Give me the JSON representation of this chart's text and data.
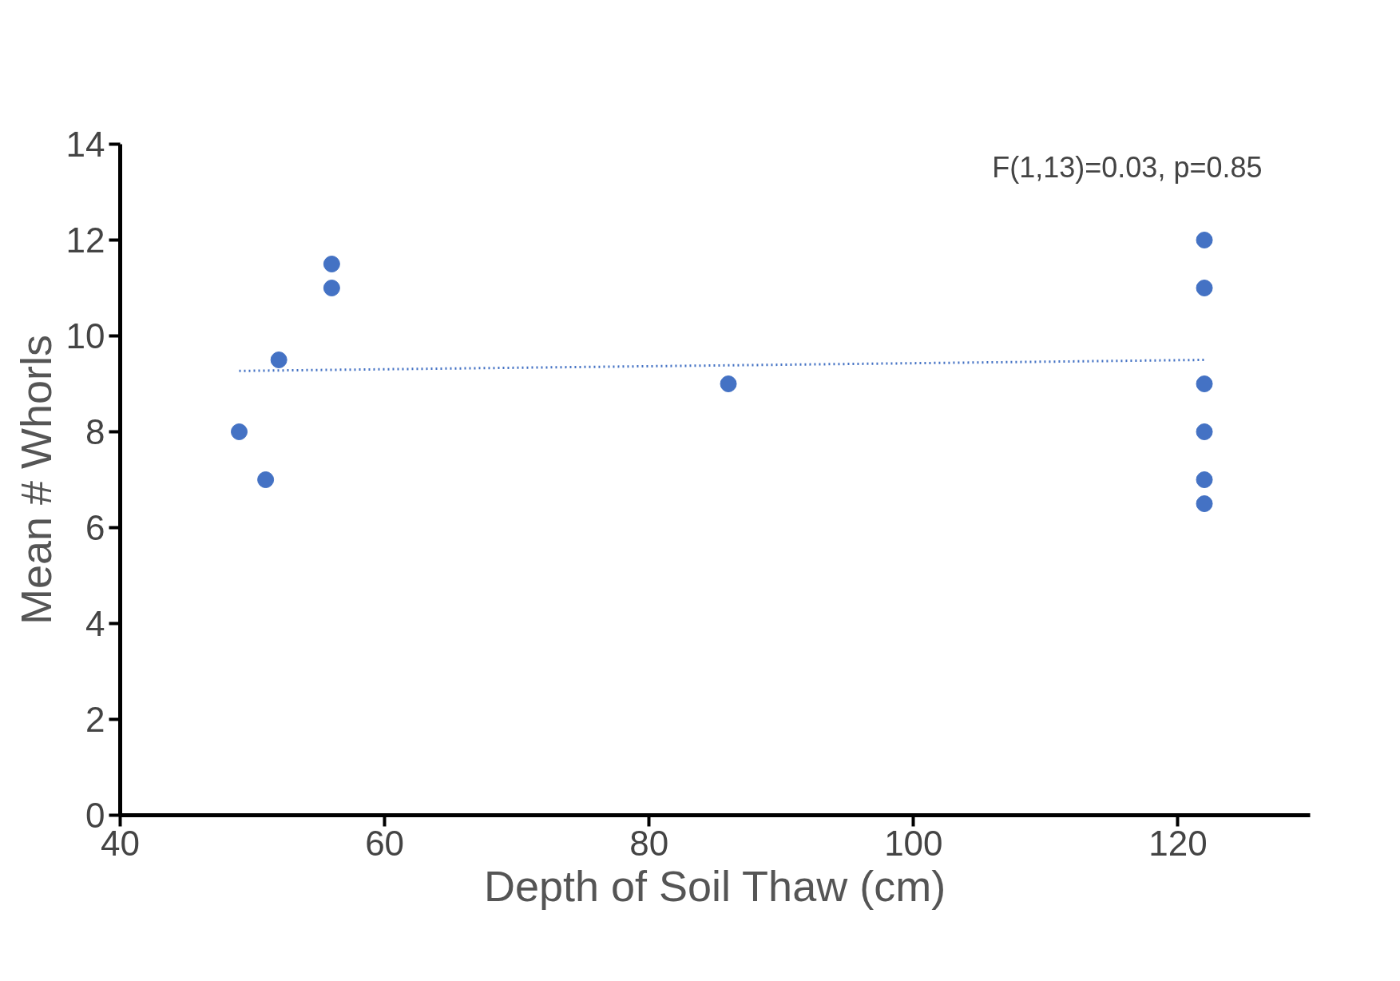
{
  "chart_data": {
    "type": "scatter",
    "xlabel": "Depth of Soil Thaw (cm)",
    "ylabel": "Mean # Whorls",
    "annotations": [
      "F(1,13)=0.03, p=0.85"
    ],
    "xlim": [
      40,
      130
    ],
    "xticks": [
      40,
      60,
      80,
      100,
      120
    ],
    "ylim": [
      0,
      14
    ],
    "yticks": [
      0,
      2,
      4,
      6,
      8,
      10,
      12,
      14
    ],
    "grid": false,
    "marker": "circle",
    "series": [
      {
        "color": "#4472c4",
        "x": [
          49,
          51,
          52,
          56,
          56,
          86,
          122,
          122,
          122,
          122,
          122,
          122
        ],
        "values": [
          8,
          7,
          9.5,
          11.5,
          11,
          9,
          12,
          11,
          9,
          8,
          7,
          6.5
        ]
      },
      {
        "type": "line",
        "line_style": "dotted",
        "marker": "none",
        "color": "#4472c4",
        "x": [
          49,
          122
        ],
        "values": [
          9.27,
          9.5
        ]
      }
    ]
  }
}
